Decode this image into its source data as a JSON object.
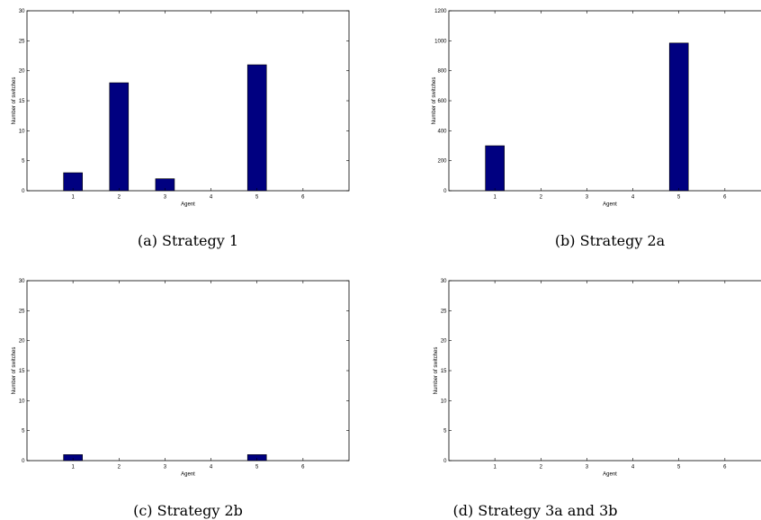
{
  "figure": {
    "colors": {
      "bar": "#000080",
      "axis": "#000000",
      "background": "#ffffff"
    }
  },
  "chart_data": [
    {
      "type": "bar",
      "caption": "(a) Strategy 1",
      "categories": [
        "1",
        "2",
        "3",
        "4",
        "5",
        "6"
      ],
      "values": [
        3,
        18,
        2,
        0,
        21,
        0
      ],
      "xlabel": "Agent",
      "ylabel": "Number of switches",
      "xlim": [
        0,
        7
      ],
      "ylim": [
        0,
        30
      ],
      "yticks": [
        "0",
        "5",
        "10",
        "15",
        "20",
        "25",
        "30"
      ],
      "grid": false
    },
    {
      "type": "bar",
      "caption": "(b) Strategy 2a",
      "categories": [
        "1",
        "2",
        "3",
        "4",
        "5",
        "6"
      ],
      "values": [
        300,
        0,
        0,
        0,
        985,
        0
      ],
      "xlabel": "Agent",
      "ylabel": "Number of switches",
      "xlim": [
        0,
        7
      ],
      "ylim": [
        0,
        1200
      ],
      "yticks": [
        "0",
        "200",
        "400",
        "600",
        "800",
        "1000",
        "1200"
      ],
      "grid": false
    },
    {
      "type": "bar",
      "caption": "(c) Strategy 2b",
      "categories": [
        "1",
        "2",
        "3",
        "4",
        "5",
        "6"
      ],
      "values": [
        1,
        0,
        0,
        0,
        1,
        0
      ],
      "xlabel": "Agent",
      "ylabel": "Number of switches",
      "xlim": [
        0,
        7
      ],
      "ylim": [
        0,
        30
      ],
      "yticks": [
        "0",
        "5",
        "10",
        "15",
        "20",
        "25",
        "30"
      ],
      "grid": false
    },
    {
      "type": "bar",
      "caption": "(d) Strategy 3a and 3b",
      "categories": [
        "1",
        "2",
        "3",
        "4",
        "5",
        "6"
      ],
      "values": [
        0,
        0,
        0,
        0,
        0,
        0
      ],
      "xlabel": "Agent",
      "ylabel": "Number of switches",
      "xlim": [
        0,
        7
      ],
      "ylim": [
        0,
        30
      ],
      "yticks": [
        "0",
        "5",
        "10",
        "15",
        "20",
        "25",
        "30"
      ],
      "grid": false
    }
  ]
}
